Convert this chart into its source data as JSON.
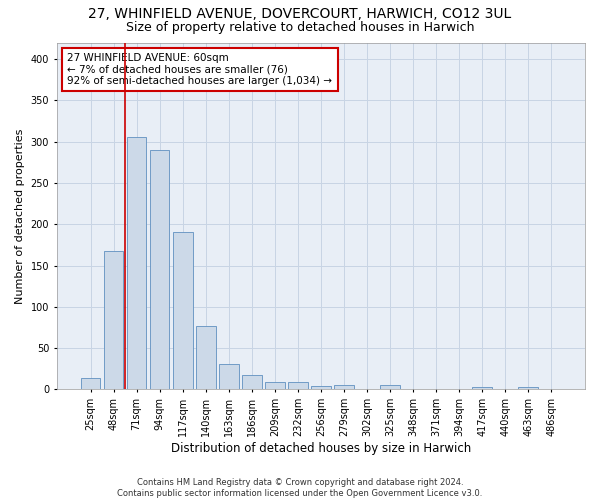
{
  "title": "27, WHINFIELD AVENUE, DOVERCOURT, HARWICH, CO12 3UL",
  "subtitle": "Size of property relative to detached houses in Harwich",
  "xlabel": "Distribution of detached houses by size in Harwich",
  "ylabel": "Number of detached properties",
  "categories": [
    "25sqm",
    "48sqm",
    "71sqm",
    "94sqm",
    "117sqm",
    "140sqm",
    "163sqm",
    "186sqm",
    "209sqm",
    "232sqm",
    "256sqm",
    "279sqm",
    "302sqm",
    "325sqm",
    "348sqm",
    "371sqm",
    "394sqm",
    "417sqm",
    "440sqm",
    "463sqm",
    "486sqm"
  ],
  "values": [
    14,
    167,
    305,
    290,
    190,
    77,
    31,
    18,
    9,
    9,
    4,
    5,
    0,
    5,
    0,
    0,
    0,
    3,
    0,
    3,
    0
  ],
  "bar_color": "#ccd9e8",
  "bar_edge_color": "#6090c0",
  "bar_edge_width": 0.6,
  "vline_x": 1.5,
  "vline_color": "#cc0000",
  "annotation_line1": "27 WHINFIELD AVENUE: 60sqm",
  "annotation_line2": "← 7% of detached houses are smaller (76)",
  "annotation_line3": "92% of semi-detached houses are larger (1,034) →",
  "annotation_box_color": "#cc0000",
  "annotation_facecolor": "#ffffff",
  "ylim": [
    0,
    420
  ],
  "yticks": [
    0,
    50,
    100,
    150,
    200,
    250,
    300,
    350,
    400
  ],
  "grid_color": "#c8d4e4",
  "background_color": "#e8eef6",
  "footer_line1": "Contains HM Land Registry data © Crown copyright and database right 2024.",
  "footer_line2": "Contains public sector information licensed under the Open Government Licence v3.0.",
  "title_fontsize": 10,
  "subtitle_fontsize": 9,
  "xlabel_fontsize": 8.5,
  "ylabel_fontsize": 8,
  "tick_fontsize": 7,
  "annotation_fontsize": 7.5,
  "footer_fontsize": 6
}
